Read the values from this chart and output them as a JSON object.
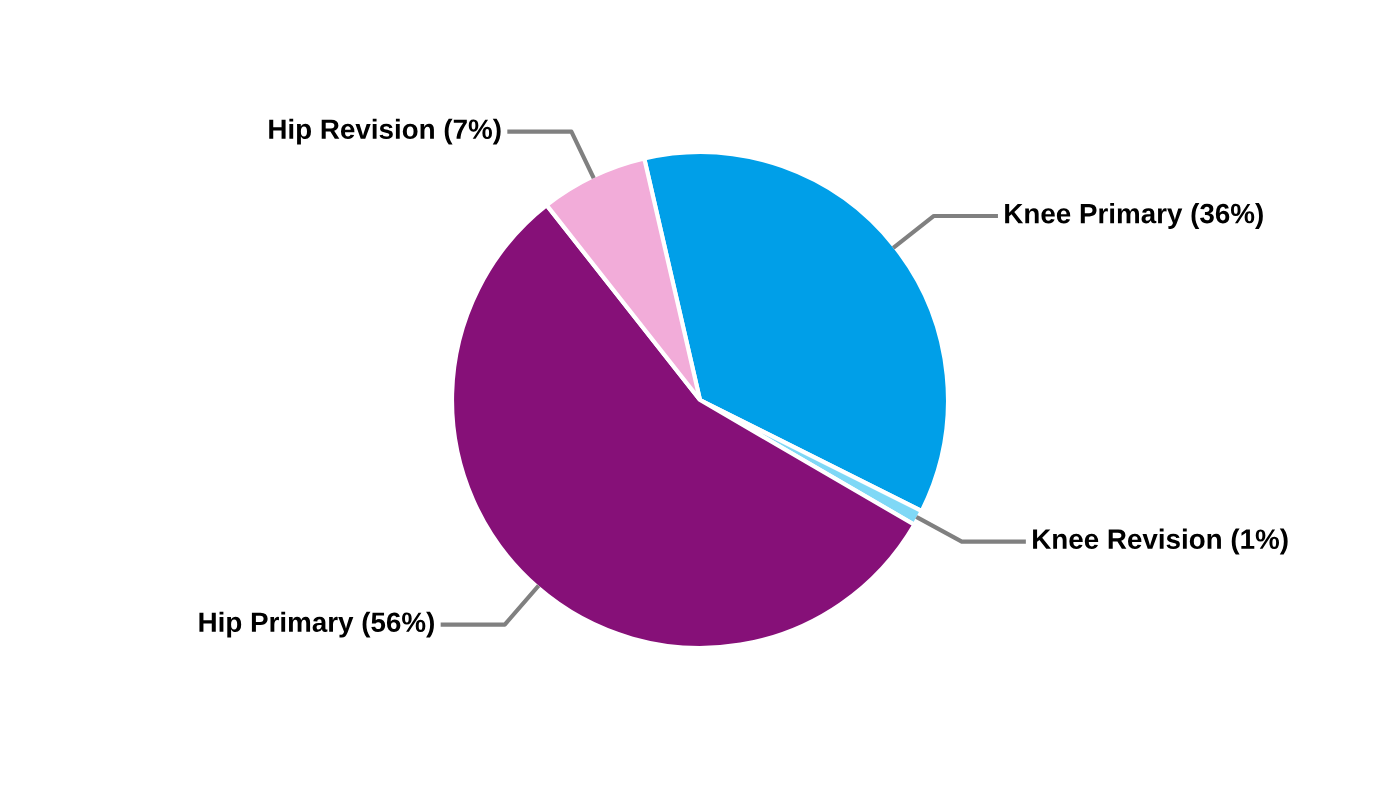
{
  "chart_data": {
    "type": "pie",
    "categories": [
      "Knee Primary (36%)",
      "Knee Revision (1%)",
      "Hip Primary (56%)",
      "Hip Revision (7%)"
    ],
    "values": [
      36,
      1,
      56,
      7
    ],
    "colors": [
      "#009fe8",
      "#7fd8f6",
      "#861078",
      "#f2acd9"
    ]
  }
}
